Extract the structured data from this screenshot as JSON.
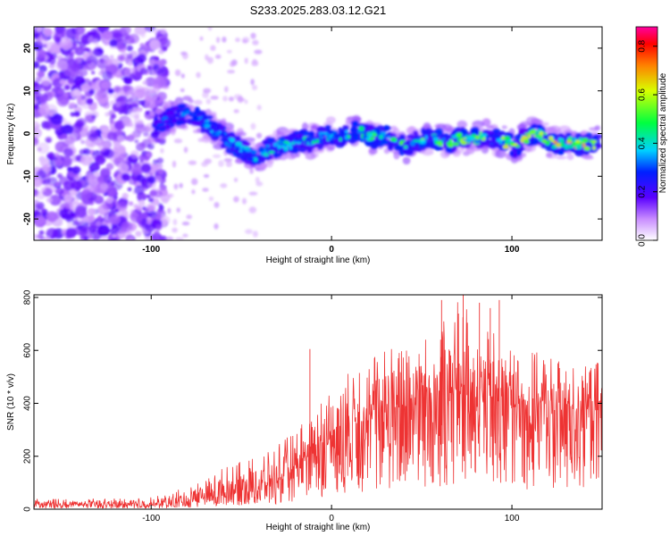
{
  "title": "S233.2025.283.03.12.G21",
  "chart_data": [
    {
      "type": "heatmap",
      "name": "spectrogram",
      "xlabel": "Height of straight line (km)",
      "ylabel": "Frequency (Hz)",
      "xlim": [
        -165,
        150
      ],
      "ylim": [
        -25,
        25
      ],
      "xticks": [
        -100,
        0,
        100
      ],
      "yticks": [
        -20,
        -10,
        0,
        10,
        20
      ],
      "colorbar": {
        "label": "Normalized spectral amplitude",
        "range": [
          0.0,
          0.88
        ],
        "ticks": [
          0.0,
          0.2,
          0.4,
          0.6,
          0.8
        ]
      },
      "signal_track": {
        "x": [
          -98,
          -90,
          -80,
          -72,
          -64,
          -56,
          -48,
          -42,
          -36,
          -30,
          -24,
          -18,
          -12,
          -6,
          0,
          6,
          12,
          18,
          24,
          30,
          36,
          42,
          48,
          54,
          60,
          66,
          72,
          78,
          84,
          90,
          96,
          102,
          108,
          114,
          120,
          126,
          132,
          138,
          144,
          148
        ],
        "freq": [
          1.5,
          3.5,
          5.0,
          3.0,
          0.5,
          -2.0,
          -4.0,
          -5.5,
          -4.0,
          -3.0,
          -2.5,
          -1.5,
          -2.0,
          -1.0,
          0.0,
          -1.0,
          0.5,
          0.0,
          -1.0,
          -0.5,
          -2.0,
          -3.0,
          -1.5,
          -1.0,
          -1.5,
          -2.0,
          -1.0,
          -1.5,
          -0.5,
          -1.0,
          -2.0,
          -3.0,
          -1.0,
          0.0,
          -1.5,
          -2.5,
          -2.0,
          -2.5,
          -2.5,
          -2.0
        ]
      },
      "noise_region_x": [
        -165,
        -100
      ]
    },
    {
      "type": "line",
      "name": "snr",
      "xlabel": "Height of straight line (km)",
      "ylabel": "SNR (10 * v/v)",
      "xlim": [
        -165,
        150
      ],
      "ylim": [
        0,
        810
      ],
      "xticks": [
        -100,
        0,
        100
      ],
      "yticks": [
        0,
        200,
        400,
        600,
        800
      ],
      "color": "#ee3333",
      "envelope": {
        "x": [
          -165,
          -120,
          -100,
          -90,
          -80,
          -70,
          -60,
          -50,
          -40,
          -30,
          -20,
          -15,
          -10,
          -5,
          0,
          10,
          20,
          30,
          40,
          50,
          60,
          70,
          80,
          90,
          100,
          110,
          120,
          130,
          140,
          150
        ],
        "base": [
          15,
          15,
          15,
          18,
          25,
          40,
          55,
          70,
          80,
          100,
          140,
          170,
          200,
          230,
          250,
          300,
          330,
          360,
          380,
          390,
          400,
          400,
          400,
          390,
          380,
          370,
          360,
          350,
          350,
          360
        ],
        "peak": [
          40,
          40,
          45,
          60,
          90,
          120,
          160,
          180,
          200,
          240,
          300,
          350,
          380,
          420,
          450,
          520,
          580,
          620,
          650,
          660,
          700,
          790,
          720,
          690,
          620,
          600,
          580,
          560,
          540,
          560
        ]
      },
      "spikes": [
        {
          "x": -12,
          "y": 605
        },
        {
          "x": 61,
          "y": 790
        },
        {
          "x": 73,
          "y": 810
        },
        {
          "x": 82,
          "y": 780
        },
        {
          "x": 93,
          "y": 790
        },
        {
          "x": 88,
          "y": 760
        }
      ]
    }
  ]
}
